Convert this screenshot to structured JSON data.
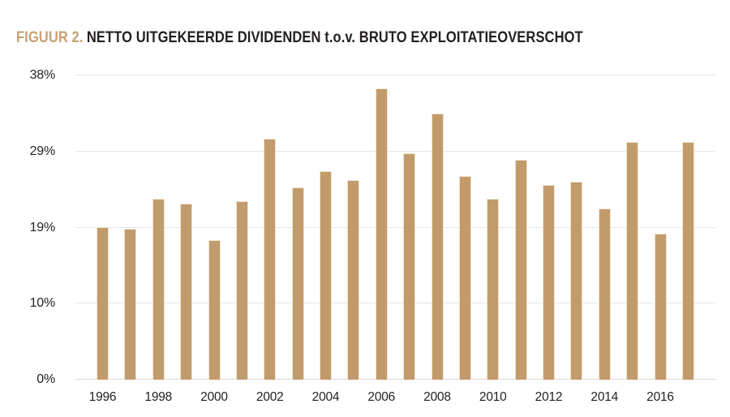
{
  "title": {
    "prefix": "FIGUUR 2.",
    "text": "NETTO UITGEKEERDE DIVIDENDEN t.o.v. BRUTO EXPLOITATIEOVERSCHOT"
  },
  "colors": {
    "background": "#FFFFFF",
    "bar_fill": "#C29B6D",
    "bar_edge": "#EFE3CE",
    "title_accent": "#C7A173",
    "text_dark": "#231F20",
    "gridline": "#E5E5E5",
    "baseline": "#D9D9D9"
  },
  "chart_data": {
    "type": "bar",
    "title": "FIGUUR 2. NETTO UITGEKEERDE DIVIDENDEN t.o.v. BRUTO EXPLOITATIEOVERSCHOT",
    "categories": [
      1996,
      1997,
      1998,
      1999,
      2000,
      2001,
      2002,
      2003,
      2004,
      2005,
      2006,
      2007,
      2008,
      2009,
      2010,
      2011,
      2012,
      2013,
      2014,
      2015,
      2016,
      2017
    ],
    "values": [
      19.1,
      18.8,
      22.6,
      22.0,
      17.4,
      22.3,
      30.1,
      24.0,
      26.0,
      24.9,
      36.4,
      28.3,
      33.2,
      25.4,
      22.6,
      27.5,
      24.3,
      24.7,
      21.4,
      29.7,
      18.2,
      29.7
    ],
    "unit": "%",
    "x_tick_labels": [
      "1996",
      "1998",
      "2000",
      "2002",
      "2004",
      "2006",
      "2008",
      "2010",
      "2012",
      "2014",
      "2016"
    ],
    "y_ticks": [
      {
        "label": "0%",
        "value": 0
      },
      {
        "label": "10%",
        "value": 9.5
      },
      {
        "label": "19%",
        "value": 19
      },
      {
        "label": "29%",
        "value": 28.5
      },
      {
        "label": "38%",
        "value": 38
      }
    ],
    "ylim": [
      0,
      38
    ],
    "grid": "horizontal",
    "legend": "none",
    "xlabel": "",
    "ylabel": ""
  }
}
